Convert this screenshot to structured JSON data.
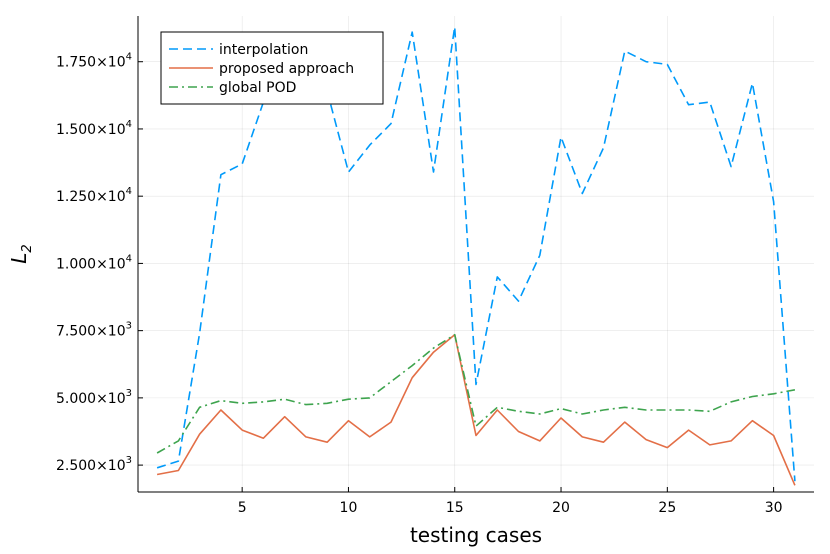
{
  "chart_data": {
    "type": "line",
    "xlabel": "testing cases",
    "ylabel": "L2",
    "xlim": [
      0.1,
      31.9
    ],
    "ylim": [
      1500,
      19200
    ],
    "x_ticks": [
      5,
      10,
      15,
      20,
      25,
      30
    ],
    "x_tick_labels": [
      "5",
      "10",
      "15",
      "20",
      "25",
      "30"
    ],
    "y_ticks": [
      2500,
      5000,
      7500,
      10000,
      12500,
      15000,
      17500
    ],
    "y_tick_labels": [
      {
        "mantissa": "2.500×10",
        "exp": "3"
      },
      {
        "mantissa": "5.000×10",
        "exp": "3"
      },
      {
        "mantissa": "7.500×10",
        "exp": "3"
      },
      {
        "mantissa": "1.000×10",
        "exp": "4"
      },
      {
        "mantissa": "1.250×10",
        "exp": "4"
      },
      {
        "mantissa": "1.500×10",
        "exp": "4"
      },
      {
        "mantissa": "1.750×10",
        "exp": "4"
      }
    ],
    "grid": true,
    "legend_position": "top-left",
    "x": [
      1,
      2,
      3,
      4,
      5,
      6,
      7,
      8,
      9,
      10,
      11,
      12,
      13,
      14,
      15,
      16,
      17,
      18,
      19,
      20,
      21,
      22,
      23,
      24,
      25,
      26,
      27,
      28,
      29,
      30,
      31
    ],
    "series": [
      {
        "name": "interpolation",
        "color": "#009AFA",
        "dash": "dash",
        "values": [
          2400,
          2650,
          7400,
          13300,
          13700,
          16000,
          17600,
          16700,
          16400,
          13400,
          14400,
          15200,
          18600,
          13400,
          18800,
          5500,
          9500,
          8600,
          10300,
          14700,
          12600,
          14300,
          17900,
          17500,
          17400,
          15900,
          16000,
          13600,
          16700,
          12300,
          1900
        ]
      },
      {
        "name": "proposed approach",
        "color": "#E36F47",
        "dash": "solid",
        "values": [
          2150,
          2300,
          3650,
          4550,
          3800,
          3500,
          4300,
          3550,
          3350,
          4150,
          3550,
          4100,
          5750,
          6700,
          7350,
          3600,
          4550,
          3750,
          3400,
          4250,
          3550,
          3350,
          4100,
          3450,
          3150,
          3800,
          3250,
          3400,
          4150,
          3600,
          1750
        ]
      },
      {
        "name": "global POD",
        "color": "#3EA44E",
        "dash": "dashdot",
        "values": [
          2950,
          3400,
          4650,
          4900,
          4800,
          4850,
          4950,
          4750,
          4800,
          4950,
          5000,
          5600,
          6200,
          6850,
          7350,
          3950,
          4650,
          4500,
          4400,
          4600,
          4400,
          4550,
          4650,
          4550,
          4550,
          4550,
          4500,
          4850,
          5050,
          5150,
          5300
        ]
      }
    ]
  }
}
